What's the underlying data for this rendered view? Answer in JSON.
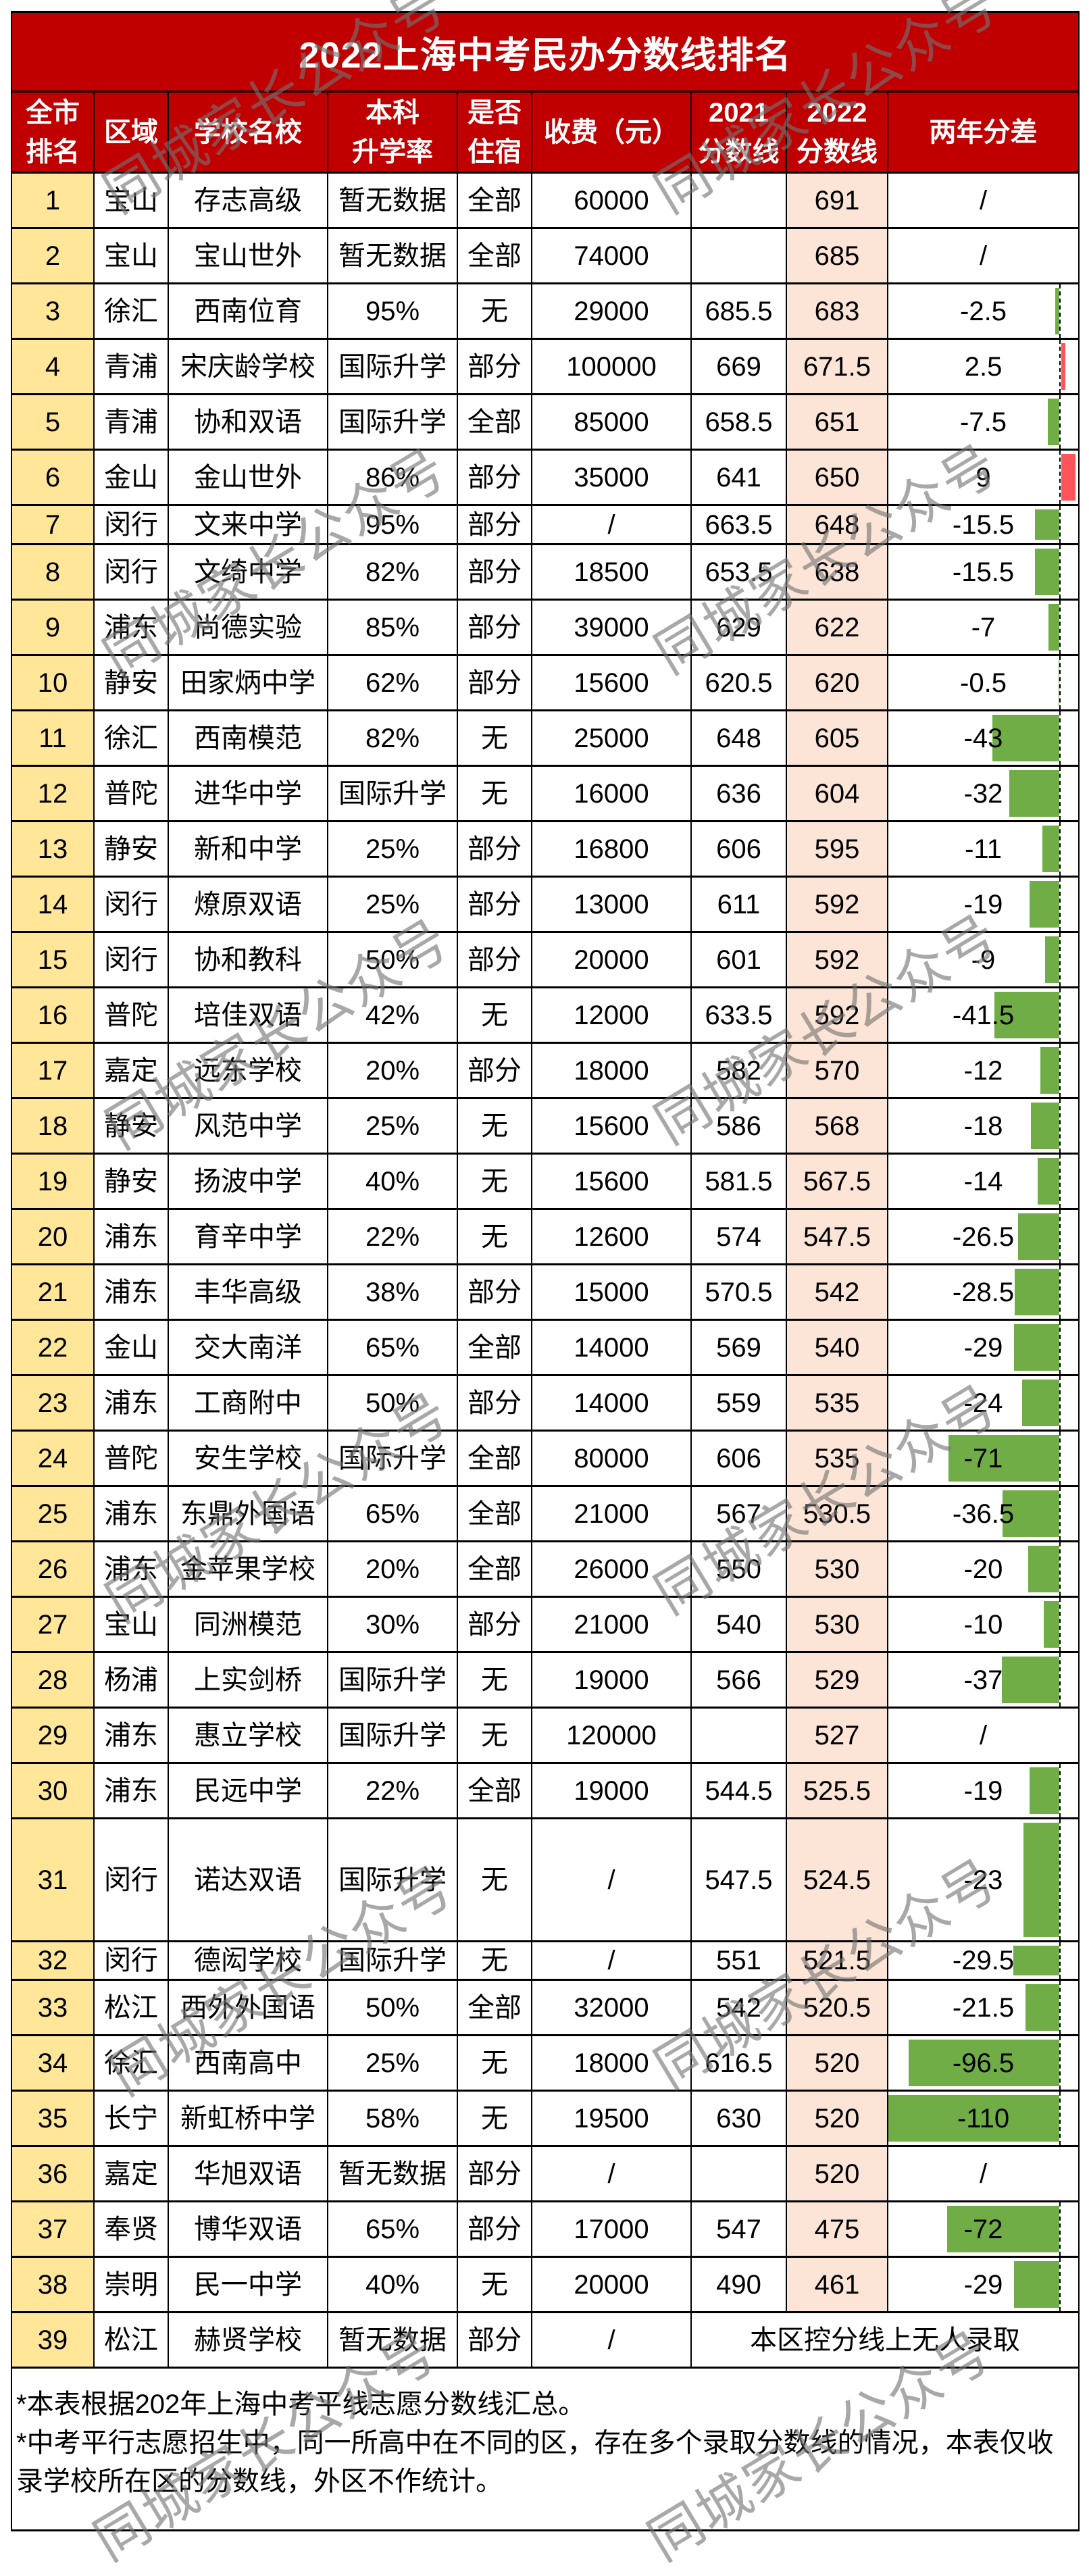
{
  "colors": {
    "title_bg": "#C00000",
    "rank_bg": "#FFE699",
    "score2022_bg": "#FCE4D6",
    "bar_negative": "#70AD47",
    "bar_positive": "#FF555A"
  },
  "watermark": "同城家长公众号",
  "chart_data": {
    "type": "table",
    "title": "2022上海中考民办分数线排名",
    "headers": [
      {
        "lines": [
          "全市",
          "排名"
        ]
      },
      {
        "lines": [
          "区域"
        ]
      },
      {
        "lines": [
          "学校名校"
        ]
      },
      {
        "lines": [
          "本科",
          "升学率"
        ]
      },
      {
        "lines": [
          "是否",
          "住宿"
        ]
      },
      {
        "lines": [
          "收费（元）"
        ]
      },
      {
        "lines": [
          "2021",
          "分数线"
        ]
      },
      {
        "lines": [
          "2022",
          "分数线"
        ]
      },
      {
        "lines": [
          "两年分差"
        ]
      }
    ],
    "rows": [
      {
        "rank": "1",
        "district": "宝山",
        "school": "存志高级",
        "bachelor_rate": "暂无数据",
        "boarding": "全部",
        "fee": "60000",
        "score_2021": "",
        "score_2022": "691",
        "diff": "/",
        "diff_value": null
      },
      {
        "rank": "2",
        "district": "宝山",
        "school": "宝山世外",
        "bachelor_rate": "暂无数据",
        "boarding": "全部",
        "fee": "74000",
        "score_2021": "",
        "score_2022": "685",
        "diff": "/",
        "diff_value": null
      },
      {
        "rank": "3",
        "district": "徐汇",
        "school": "西南位育",
        "bachelor_rate": "95%",
        "boarding": "无",
        "fee": "29000",
        "score_2021": "685.5",
        "score_2022": "683",
        "diff": "-2.5",
        "diff_value": -2.5
      },
      {
        "rank": "4",
        "district": "青浦",
        "school": "宋庆龄学校",
        "bachelor_rate": "国际升学",
        "boarding": "部分",
        "fee": "100000",
        "score_2021": "669",
        "score_2022": "671.5",
        "diff": "2.5",
        "diff_value": 2.5
      },
      {
        "rank": "5",
        "district": "青浦",
        "school": "协和双语",
        "bachelor_rate": "国际升学",
        "boarding": "全部",
        "fee": "85000",
        "score_2021": "658.5",
        "score_2022": "651",
        "diff": "-7.5",
        "diff_value": -7.5
      },
      {
        "rank": "6",
        "district": "金山",
        "school": "金山世外",
        "bachelor_rate": "86%",
        "boarding": "部分",
        "fee": "35000",
        "score_2021": "641",
        "score_2022": "650",
        "diff": "9",
        "diff_value": 9
      },
      {
        "rank": "7",
        "district": "闵行",
        "school": "文来中学",
        "bachelor_rate": "95%",
        "boarding": "部分",
        "fee": "/",
        "score_2021": "663.5",
        "score_2022": "648",
        "diff": "-15.5",
        "diff_value": -15.5
      },
      {
        "rank": "8",
        "district": "闵行",
        "school": "文绮中学",
        "bachelor_rate": "82%",
        "boarding": "部分",
        "fee": "18500",
        "score_2021": "653.5",
        "score_2022": "638",
        "diff": "-15.5",
        "diff_value": -15.5
      },
      {
        "rank": "9",
        "district": "浦东",
        "school": "尚德实验",
        "bachelor_rate": "85%",
        "boarding": "部分",
        "fee": "39000",
        "score_2021": "629",
        "score_2022": "622",
        "diff": "-7",
        "diff_value": -7
      },
      {
        "rank": "10",
        "district": "静安",
        "school": "田家炳中学",
        "bachelor_rate": "62%",
        "boarding": "部分",
        "fee": "15600",
        "score_2021": "620.5",
        "score_2022": "620",
        "diff": "-0.5",
        "diff_value": -0.5
      },
      {
        "rank": "11",
        "district": "徐汇",
        "school": "西南模范",
        "bachelor_rate": "82%",
        "boarding": "无",
        "fee": "25000",
        "score_2021": "648",
        "score_2022": "605",
        "diff": "-43",
        "diff_value": -43
      },
      {
        "rank": "12",
        "district": "普陀",
        "school": "进华中学",
        "bachelor_rate": "国际升学",
        "boarding": "无",
        "fee": "16000",
        "score_2021": "636",
        "score_2022": "604",
        "diff": "-32",
        "diff_value": -32
      },
      {
        "rank": "13",
        "district": "静安",
        "school": "新和中学",
        "bachelor_rate": "25%",
        "boarding": "部分",
        "fee": "16800",
        "score_2021": "606",
        "score_2022": "595",
        "diff": "-11",
        "diff_value": -11
      },
      {
        "rank": "14",
        "district": "闵行",
        "school": "燎原双语",
        "bachelor_rate": "25%",
        "boarding": "部分",
        "fee": "13000",
        "score_2021": "611",
        "score_2022": "592",
        "diff": "-19",
        "diff_value": -19
      },
      {
        "rank": "15",
        "district": "闵行",
        "school": "协和教科",
        "bachelor_rate": "50%",
        "boarding": "部分",
        "fee": "20000",
        "score_2021": "601",
        "score_2022": "592",
        "diff": "-9",
        "diff_value": -9
      },
      {
        "rank": "16",
        "district": "普陀",
        "school": "培佳双语",
        "bachelor_rate": "42%",
        "boarding": "无",
        "fee": "12000",
        "score_2021": "633.5",
        "score_2022": "592",
        "diff": "-41.5",
        "diff_value": -41.5
      },
      {
        "rank": "17",
        "district": "嘉定",
        "school": "远东学校",
        "bachelor_rate": "20%",
        "boarding": "部分",
        "fee": "18000",
        "score_2021": "582",
        "score_2022": "570",
        "diff": "-12",
        "diff_value": -12
      },
      {
        "rank": "18",
        "district": "静安",
        "school": "风范中学",
        "bachelor_rate": "25%",
        "boarding": "无",
        "fee": "15600",
        "score_2021": "586",
        "score_2022": "568",
        "diff": "-18",
        "diff_value": -18
      },
      {
        "rank": "19",
        "district": "静安",
        "school": "扬波中学",
        "bachelor_rate": "40%",
        "boarding": "无",
        "fee": "15600",
        "score_2021": "581.5",
        "score_2022": "567.5",
        "diff": "-14",
        "diff_value": -14
      },
      {
        "rank": "20",
        "district": "浦东",
        "school": "育辛中学",
        "bachelor_rate": "22%",
        "boarding": "无",
        "fee": "12600",
        "score_2021": "574",
        "score_2022": "547.5",
        "diff": "-26.5",
        "diff_value": -26.5
      },
      {
        "rank": "21",
        "district": "浦东",
        "school": "丰华高级",
        "bachelor_rate": "38%",
        "boarding": "部分",
        "fee": "15000",
        "score_2021": "570.5",
        "score_2022": "542",
        "diff": "-28.5",
        "diff_value": -28.5
      },
      {
        "rank": "22",
        "district": "金山",
        "school": "交大南洋",
        "bachelor_rate": "65%",
        "boarding": "全部",
        "fee": "14000",
        "score_2021": "569",
        "score_2022": "540",
        "diff": "-29",
        "diff_value": -29
      },
      {
        "rank": "23",
        "district": "浦东",
        "school": "工商附中",
        "bachelor_rate": "50%",
        "boarding": "部分",
        "fee": "14000",
        "score_2021": "559",
        "score_2022": "535",
        "diff": "-24",
        "diff_value": -24
      },
      {
        "rank": "24",
        "district": "普陀",
        "school": "安生学校",
        "bachelor_rate": "国际升学",
        "boarding": "全部",
        "fee": "80000",
        "score_2021": "606",
        "score_2022": "535",
        "diff": "-71",
        "diff_value": -71
      },
      {
        "rank": "25",
        "district": "浦东",
        "school": "东鼎外国语",
        "bachelor_rate": "65%",
        "boarding": "全部",
        "fee": "21000",
        "score_2021": "567",
        "score_2022": "530.5",
        "diff": "-36.5",
        "diff_value": -36.5
      },
      {
        "rank": "26",
        "district": "浦东",
        "school": "金苹果学校",
        "bachelor_rate": "20%",
        "boarding": "全部",
        "fee": "26000",
        "score_2021": "550",
        "score_2022": "530",
        "diff": "-20",
        "diff_value": -20
      },
      {
        "rank": "27",
        "district": "宝山",
        "school": "同洲模范",
        "bachelor_rate": "30%",
        "boarding": "部分",
        "fee": "21000",
        "score_2021": "540",
        "score_2022": "530",
        "diff": "-10",
        "diff_value": -10
      },
      {
        "rank": "28",
        "district": "杨浦",
        "school": "上实剑桥",
        "bachelor_rate": "国际升学",
        "boarding": "无",
        "fee": "19000",
        "score_2021": "566",
        "score_2022": "529",
        "diff": "-37",
        "diff_value": -37
      },
      {
        "rank": "29",
        "district": "浦东",
        "school": "惠立学校",
        "bachelor_rate": "国际升学",
        "boarding": "无",
        "fee": "120000",
        "score_2021": "",
        "score_2022": "527",
        "diff": "/",
        "diff_value": null
      },
      {
        "rank": "30",
        "district": "浦东",
        "school": "民远中学",
        "bachelor_rate": "22%",
        "boarding": "全部",
        "fee": "19000",
        "score_2021": "544.5",
        "score_2022": "525.5",
        "diff": "-19",
        "diff_value": -19
      },
      {
        "rank": "31",
        "district": "闵行",
        "school": "诺达双语",
        "bachelor_rate": "国际升学",
        "boarding": "无",
        "fee": "/",
        "score_2021": "547.5",
        "score_2022": "524.5",
        "diff": "-23",
        "diff_value": -23
      },
      {
        "rank": "32",
        "district": "闵行",
        "school": "德闳学校",
        "bachelor_rate": "国际升学",
        "boarding": "无",
        "fee": "/",
        "score_2021": "551",
        "score_2022": "521.5",
        "diff": "-29.5",
        "diff_value": -29.5
      },
      {
        "rank": "33",
        "district": "松江",
        "school": "西外外国语",
        "bachelor_rate": "50%",
        "boarding": "全部",
        "fee": "32000",
        "score_2021": "542",
        "score_2022": "520.5",
        "diff": "-21.5",
        "diff_value": -21.5
      },
      {
        "rank": "34",
        "district": "徐汇",
        "school": "西南高中",
        "bachelor_rate": "25%",
        "boarding": "无",
        "fee": "18000",
        "score_2021": "616.5",
        "score_2022": "520",
        "diff": "-96.5",
        "diff_value": -96.5
      },
      {
        "rank": "35",
        "district": "长宁",
        "school": "新虹桥中学",
        "bachelor_rate": "58%",
        "boarding": "无",
        "fee": "19500",
        "score_2021": "630",
        "score_2022": "520",
        "diff": "-110",
        "diff_value": -110
      },
      {
        "rank": "36",
        "district": "嘉定",
        "school": "华旭双语",
        "bachelor_rate": "暂无数据",
        "boarding": "部分",
        "fee": "/",
        "score_2021": "",
        "score_2022": "520",
        "diff": "/",
        "diff_value": null
      },
      {
        "rank": "37",
        "district": "奉贤",
        "school": "博华双语",
        "bachelor_rate": "65%",
        "boarding": "部分",
        "fee": "17000",
        "score_2021": "547",
        "score_2022": "475",
        "diff": "-72",
        "diff_value": -72
      },
      {
        "rank": "38",
        "district": "崇明",
        "school": "民一中学",
        "bachelor_rate": "40%",
        "boarding": "无",
        "fee": "20000",
        "score_2021": "490",
        "score_2022": "461",
        "diff": "-29",
        "diff_value": -29
      },
      {
        "rank": "39",
        "district": "松江",
        "school": "赫贤学校",
        "bachelor_rate": "暂无数据",
        "boarding": "部分",
        "fee": "/",
        "merged_note": "本区控分线上无人录取"
      }
    ],
    "data_bars": {
      "column": "两年分差",
      "axis": "dashed, right side",
      "negative_color": "#70AD47",
      "positive_color": "#FF555A",
      "min": -110,
      "max": 9
    }
  },
  "notes": [
    "*本表根据202年上海中考平线志愿分数线汇总。",
    "*中考平行志愿招生中，同一所高中在不同的区，存在多个录取分数线的情况，本表仅收录学校所在区的分数线，外区不作统计。"
  ]
}
